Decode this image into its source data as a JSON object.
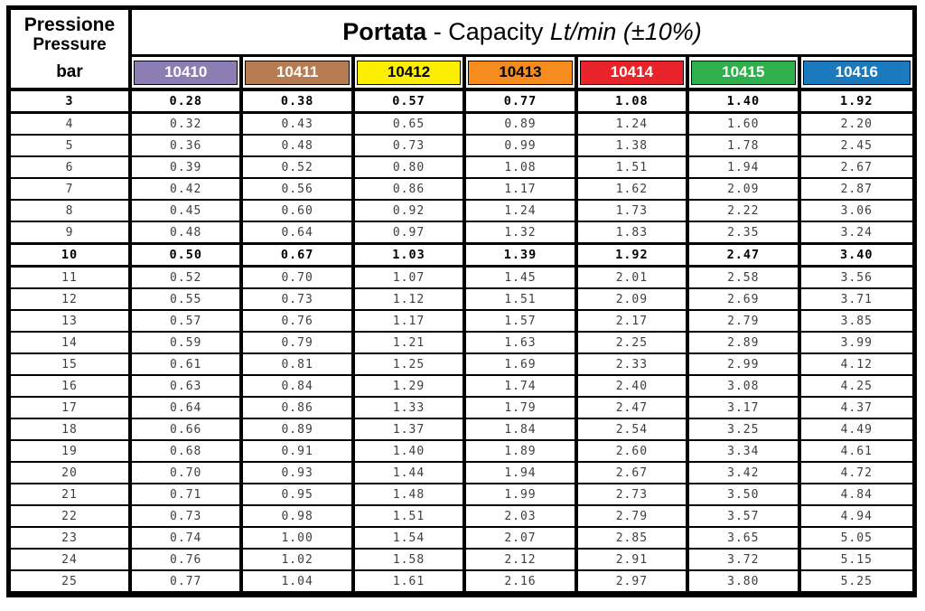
{
  "header": {
    "pressure_label_primary": "Pressione",
    "pressure_label_secondary": "Pressure",
    "pressure_unit": "bar",
    "title_bold": "Portata",
    "title_regular": " - Capacity ",
    "title_italic": "Lt/min (±10%)"
  },
  "chart_data": {
    "type": "table",
    "title": "Portata - Capacity Lt/min (±10%)",
    "row_header": "Pressione / Pressure (bar)",
    "value_unit": "Lt/min (±10%)",
    "columns": [
      {
        "code": "10410",
        "color": "#8c7db4",
        "text_color": "#ffffff"
      },
      {
        "code": "10411",
        "color": "#b87c52",
        "text_color": "#ffffff"
      },
      {
        "code": "10412",
        "color": "#fcee00",
        "text_color": "#000000"
      },
      {
        "code": "10413",
        "color": "#f68b1e",
        "text_color": "#000000"
      },
      {
        "code": "10414",
        "color": "#e8242a",
        "text_color": "#ffffff"
      },
      {
        "code": "10415",
        "color": "#2fb04c",
        "text_color": "#ffffff"
      },
      {
        "code": "10416",
        "color": "#1b79be",
        "text_color": "#ffffff"
      }
    ],
    "rows": [
      {
        "bar": "3",
        "bold": true,
        "values": [
          "0.28",
          "0.38",
          "0.57",
          "0.77",
          "1.08",
          "1.40",
          "1.92"
        ]
      },
      {
        "bar": "4",
        "bold": false,
        "values": [
          "0.32",
          "0.43",
          "0.65",
          "0.89",
          "1.24",
          "1.60",
          "2.20"
        ]
      },
      {
        "bar": "5",
        "bold": false,
        "values": [
          "0.36",
          "0.48",
          "0.73",
          "0.99",
          "1.38",
          "1.78",
          "2.45"
        ]
      },
      {
        "bar": "6",
        "bold": false,
        "values": [
          "0.39",
          "0.52",
          "0.80",
          "1.08",
          "1.51",
          "1.94",
          "2.67"
        ]
      },
      {
        "bar": "7",
        "bold": false,
        "values": [
          "0.42",
          "0.56",
          "0.86",
          "1.17",
          "1.62",
          "2.09",
          "2.87"
        ]
      },
      {
        "bar": "8",
        "bold": false,
        "values": [
          "0.45",
          "0.60",
          "0.92",
          "1.24",
          "1.73",
          "2.22",
          "3.06"
        ]
      },
      {
        "bar": "9",
        "bold": false,
        "values": [
          "0.48",
          "0.64",
          "0.97",
          "1.32",
          "1.83",
          "2.35",
          "3.24"
        ]
      },
      {
        "bar": "10",
        "bold": true,
        "values": [
          "0.50",
          "0.67",
          "1.03",
          "1.39",
          "1.92",
          "2.47",
          "3.40"
        ]
      },
      {
        "bar": "11",
        "bold": false,
        "values": [
          "0.52",
          "0.70",
          "1.07",
          "1.45",
          "2.01",
          "2.58",
          "3.56"
        ]
      },
      {
        "bar": "12",
        "bold": false,
        "values": [
          "0.55",
          "0.73",
          "1.12",
          "1.51",
          "2.09",
          "2.69",
          "3.71"
        ]
      },
      {
        "bar": "13",
        "bold": false,
        "values": [
          "0.57",
          "0.76",
          "1.17",
          "1.57",
          "2.17",
          "2.79",
          "3.85"
        ]
      },
      {
        "bar": "14",
        "bold": false,
        "values": [
          "0.59",
          "0.79",
          "1.21",
          "1.63",
          "2.25",
          "2.89",
          "3.99"
        ]
      },
      {
        "bar": "15",
        "bold": false,
        "values": [
          "0.61",
          "0.81",
          "1.25",
          "1.69",
          "2.33",
          "2.99",
          "4.12"
        ]
      },
      {
        "bar": "16",
        "bold": false,
        "values": [
          "0.63",
          "0.84",
          "1.29",
          "1.74",
          "2.40",
          "3.08",
          "4.25"
        ]
      },
      {
        "bar": "17",
        "bold": false,
        "values": [
          "0.64",
          "0.86",
          "1.33",
          "1.79",
          "2.47",
          "3.17",
          "4.37"
        ]
      },
      {
        "bar": "18",
        "bold": false,
        "values": [
          "0.66",
          "0.89",
          "1.37",
          "1.84",
          "2.54",
          "3.25",
          "4.49"
        ]
      },
      {
        "bar": "19",
        "bold": false,
        "values": [
          "0.68",
          "0.91",
          "1.40",
          "1.89",
          "2.60",
          "3.34",
          "4.61"
        ]
      },
      {
        "bar": "20",
        "bold": false,
        "values": [
          "0.70",
          "0.93",
          "1.44",
          "1.94",
          "2.67",
          "3.42",
          "4.72"
        ]
      },
      {
        "bar": "21",
        "bold": false,
        "values": [
          "0.71",
          "0.95",
          "1.48",
          "1.99",
          "2.73",
          "3.50",
          "4.84"
        ]
      },
      {
        "bar": "22",
        "bold": false,
        "values": [
          "0.73",
          "0.98",
          "1.51",
          "2.03",
          "2.79",
          "3.57",
          "4.94"
        ]
      },
      {
        "bar": "23",
        "bold": false,
        "values": [
          "0.74",
          "1.00",
          "1.54",
          "2.07",
          "2.85",
          "3.65",
          "5.05"
        ]
      },
      {
        "bar": "24",
        "bold": false,
        "values": [
          "0.76",
          "1.02",
          "1.58",
          "2.12",
          "2.91",
          "3.72",
          "5.15"
        ]
      },
      {
        "bar": "25",
        "bold": false,
        "values": [
          "0.77",
          "1.04",
          "1.61",
          "2.16",
          "2.97",
          "3.80",
          "5.25"
        ]
      }
    ]
  }
}
